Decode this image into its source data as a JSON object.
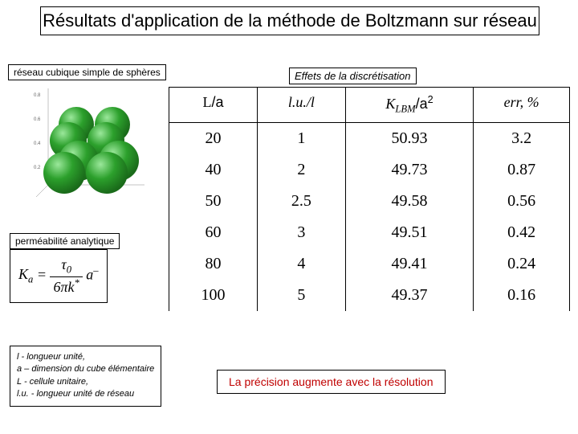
{
  "title": "Résultats d'application de la méthode de Boltzmann sur réseau",
  "labels": {
    "spheres": "réseau cubique simple de sphères",
    "effects": "Effets de la discrétisation",
    "perm": "perméabilité analytique"
  },
  "formula": {
    "lhs": "K",
    "lhs_sub": "a",
    "num_a": "τ",
    "num_a_sub": "0",
    "den_a": "6π",
    "den_b": "k",
    "den_b_sup": "*",
    "right": "a",
    "right_sup": "–"
  },
  "legend": {
    "l1": "l - longueur unité,",
    "l2": "a – dimension du cube élémentaire",
    "l3": "L - cellule unitaire,",
    "l4": "l.u. - longueur unité de réseau"
  },
  "conclusion": "La précision augmente avec la résolution",
  "table": {
    "headers": {
      "c1a": "L",
      "c1b": "/a",
      "c2": "l.u./l",
      "c3a": "K",
      "c3a_sub": "LBM",
      "c3b": "/a",
      "c3b_sup": "2",
      "c4": "err, %"
    },
    "rows": [
      {
        "c1": "20",
        "c2": "1",
        "c3": "50.93",
        "c4": "3.2"
      },
      {
        "c1": "40",
        "c2": "2",
        "c3": "49.73",
        "c4": "0.87"
      },
      {
        "c1": "50",
        "c2": "2.5",
        "c3": "49.58",
        "c4": "0.56"
      },
      {
        "c1": "60",
        "c2": "3",
        "c3": "49.51",
        "c4": "0.42"
      },
      {
        "c1": "80",
        "c2": "4",
        "c3": "49.41",
        "c4": "0.24"
      },
      {
        "c1": "100",
        "c2": "5",
        "c3": "49.37",
        "c4": "0.16"
      }
    ]
  },
  "sphere_color": "#2ca02c",
  "sphere_stroke": "#1a6b1a"
}
